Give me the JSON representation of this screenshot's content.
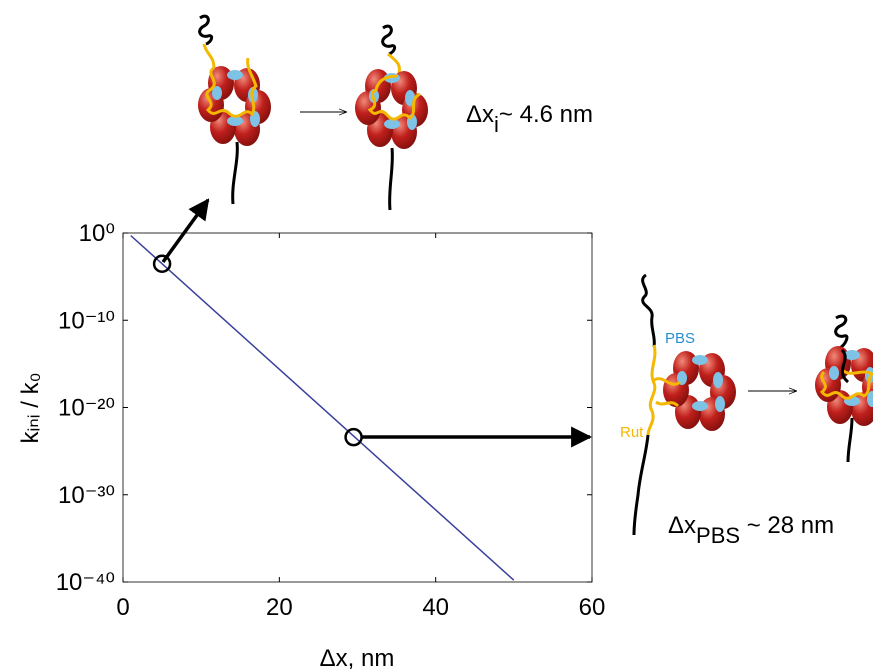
{
  "chart_data": {
    "type": "line",
    "xlabel": "Δx, nm",
    "ylabel": "kᵢₙᵢ / k₀",
    "xlim": [
      0,
      60
    ],
    "ylim": [
      1e-40,
      1
    ],
    "log_y": true,
    "xticks": [
      0,
      20,
      40,
      60
    ],
    "yticks": [
      {
        "value": 1,
        "label": "10⁰"
      },
      {
        "value": 1e-10,
        "label": "10⁻¹⁰"
      },
      {
        "value": 1e-20,
        "label": "10⁻²⁰"
      },
      {
        "value": 1e-30,
        "label": "10⁻³⁰"
      },
      {
        "value": 1e-40,
        "label": "10⁻⁴⁰"
      }
    ],
    "series": [
      {
        "color": "#3a3f9c",
        "x": [
          1,
          50
        ],
        "values": [
          0.5,
          1.6e-40
        ]
      }
    ],
    "highlight_points": {
      "color": "#000000",
      "x": [
        5,
        29.5
      ],
      "values": [
        0.0003,
        4e-24
      ]
    },
    "annotations": [
      {
        "text": "Δx",
        "sub": "i",
        "rest": "~ 4.6 nm"
      },
      {
        "text": "Δx",
        "sub": "PBS",
        "rest": " ~ 28 nm"
      }
    ],
    "labels": {
      "pbs": "PBS",
      "rut": "Rut"
    }
  }
}
